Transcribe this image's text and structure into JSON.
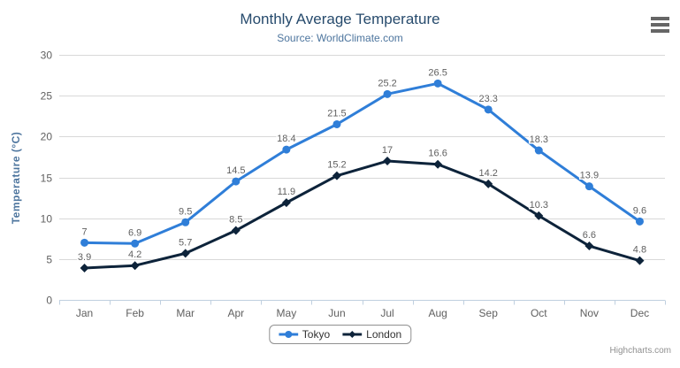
{
  "header": {
    "title": "Monthly Average Temperature",
    "subtitle": "Source: WorldClimate.com"
  },
  "credits_label": "Highcharts.com",
  "menu_icon": "hamburger-context-menu-icon",
  "palette": {
    "title": "#274b6d",
    "subtitle": "#4d759e",
    "axis_title": "#4d759e",
    "axis_label": "#606060",
    "data_label": "#606060",
    "grid_line": "#d8d8d8",
    "axis_line": "#c0d0e0",
    "legend_border": "#909090",
    "legend_text": "#333333",
    "credits": "#909090",
    "menu_icon": "#666666",
    "background": "#ffffff"
  },
  "chart_data": {
    "type": "line",
    "title": "Monthly Average Temperature",
    "subtitle": "Source: WorldClimate.com",
    "xlabel": "",
    "ylabel": "Temperature (°C)",
    "ylim": [
      0,
      30
    ],
    "ytick_step": 5,
    "grid": true,
    "legend_position": "bottom",
    "categories": [
      "Jan",
      "Feb",
      "Mar",
      "Apr",
      "May",
      "Jun",
      "Jul",
      "Aug",
      "Sep",
      "Oct",
      "Nov",
      "Dec"
    ],
    "series": [
      {
        "name": "Tokyo",
        "color": "#2f7ed8",
        "marker": "circle",
        "values": [
          7,
          6.9,
          9.5,
          14.5,
          18.4,
          21.5,
          25.2,
          26.5,
          23.3,
          18.3,
          13.9,
          9.6
        ]
      },
      {
        "name": "London",
        "color": "#0d233a",
        "marker": "diamond",
        "values": [
          3.9,
          4.2,
          5.7,
          8.5,
          11.9,
          15.2,
          17,
          16.6,
          14.2,
          10.3,
          6.6,
          4.8
        ]
      }
    ]
  }
}
